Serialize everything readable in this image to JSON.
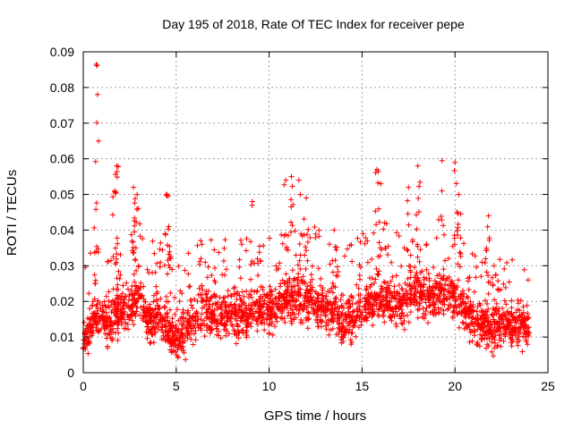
{
  "chart_data": {
    "type": "scatter",
    "title": "Day 195 of 2018, Rate Of TEC Index for receiver pepe",
    "xlabel": "GPS time / hours",
    "ylabel": "ROTI / TECUs",
    "xlim": [
      0,
      25
    ],
    "ylim": [
      0,
      0.09
    ],
    "x_ticks": [
      "0",
      "5",
      "10",
      "15",
      "20",
      "25"
    ],
    "y_ticks": [
      "0",
      "0.01",
      "0.02",
      "0.03",
      "0.04",
      "0.05",
      "0.06",
      "0.07",
      "0.08",
      "0.09"
    ],
    "grid": true,
    "marker": "plus",
    "color": "#ff0000",
    "envelope": [
      {
        "x": 0.0,
        "y": 0.009
      },
      {
        "x": 0.5,
        "y": 0.015
      },
      {
        "x": 1.0,
        "y": 0.016
      },
      {
        "x": 1.5,
        "y": 0.014
      },
      {
        "x": 2.0,
        "y": 0.017
      },
      {
        "x": 2.5,
        "y": 0.019
      },
      {
        "x": 3.0,
        "y": 0.021
      },
      {
        "x": 3.5,
        "y": 0.014
      },
      {
        "x": 4.0,
        "y": 0.016
      },
      {
        "x": 4.5,
        "y": 0.013
      },
      {
        "x": 5.0,
        "y": 0.009
      },
      {
        "x": 5.5,
        "y": 0.012
      },
      {
        "x": 6.0,
        "y": 0.015
      },
      {
        "x": 6.5,
        "y": 0.018
      },
      {
        "x": 7.0,
        "y": 0.016
      },
      {
        "x": 7.5,
        "y": 0.015
      },
      {
        "x": 8.0,
        "y": 0.017
      },
      {
        "x": 8.5,
        "y": 0.016
      },
      {
        "x": 9.0,
        "y": 0.017
      },
      {
        "x": 9.5,
        "y": 0.018
      },
      {
        "x": 10.0,
        "y": 0.017
      },
      {
        "x": 10.5,
        "y": 0.019
      },
      {
        "x": 11.0,
        "y": 0.021
      },
      {
        "x": 11.5,
        "y": 0.02
      },
      {
        "x": 12.0,
        "y": 0.02
      },
      {
        "x": 12.5,
        "y": 0.019
      },
      {
        "x": 13.0,
        "y": 0.018
      },
      {
        "x": 13.5,
        "y": 0.016
      },
      {
        "x": 14.0,
        "y": 0.014
      },
      {
        "x": 14.5,
        "y": 0.016
      },
      {
        "x": 15.0,
        "y": 0.018
      },
      {
        "x": 15.5,
        "y": 0.02
      },
      {
        "x": 16.0,
        "y": 0.021
      },
      {
        "x": 16.5,
        "y": 0.02
      },
      {
        "x": 17.0,
        "y": 0.019
      },
      {
        "x": 17.5,
        "y": 0.021
      },
      {
        "x": 18.0,
        "y": 0.022
      },
      {
        "x": 18.5,
        "y": 0.021
      },
      {
        "x": 19.0,
        "y": 0.022
      },
      {
        "x": 19.5,
        "y": 0.023
      },
      {
        "x": 20.0,
        "y": 0.02
      },
      {
        "x": 20.5,
        "y": 0.017
      },
      {
        "x": 21.0,
        "y": 0.015
      },
      {
        "x": 21.5,
        "y": 0.013
      },
      {
        "x": 22.0,
        "y": 0.012
      },
      {
        "x": 22.5,
        "y": 0.014
      },
      {
        "x": 23.0,
        "y": 0.013
      },
      {
        "x": 23.5,
        "y": 0.013
      },
      {
        "x": 24.0,
        "y": 0.012
      }
    ],
    "peaks": [
      {
        "x": 0.7,
        "y": 0.0865
      },
      {
        "x": 1.8,
        "y": 0.058
      },
      {
        "x": 1.7,
        "y": 0.051
      },
      {
        "x": 2.7,
        "y": 0.052
      },
      {
        "x": 2.9,
        "y": 0.05
      },
      {
        "x": 4.5,
        "y": 0.05
      },
      {
        "x": 4.6,
        "y": 0.041
      },
      {
        "x": 9.1,
        "y": 0.048
      },
      {
        "x": 10.9,
        "y": 0.054
      },
      {
        "x": 11.2,
        "y": 0.055
      },
      {
        "x": 11.6,
        "y": 0.054
      },
      {
        "x": 12.0,
        "y": 0.049
      },
      {
        "x": 13.5,
        "y": 0.04
      },
      {
        "x": 15.8,
        "y": 0.057
      },
      {
        "x": 16.0,
        "y": 0.053
      },
      {
        "x": 17.5,
        "y": 0.052
      },
      {
        "x": 18.0,
        "y": 0.058
      },
      {
        "x": 19.3,
        "y": 0.0595
      },
      {
        "x": 20.0,
        "y": 0.059
      },
      {
        "x": 20.2,
        "y": 0.05
      },
      {
        "x": 21.8,
        "y": 0.044
      },
      {
        "x": 22.1,
        "y": 0.03
      }
    ]
  }
}
